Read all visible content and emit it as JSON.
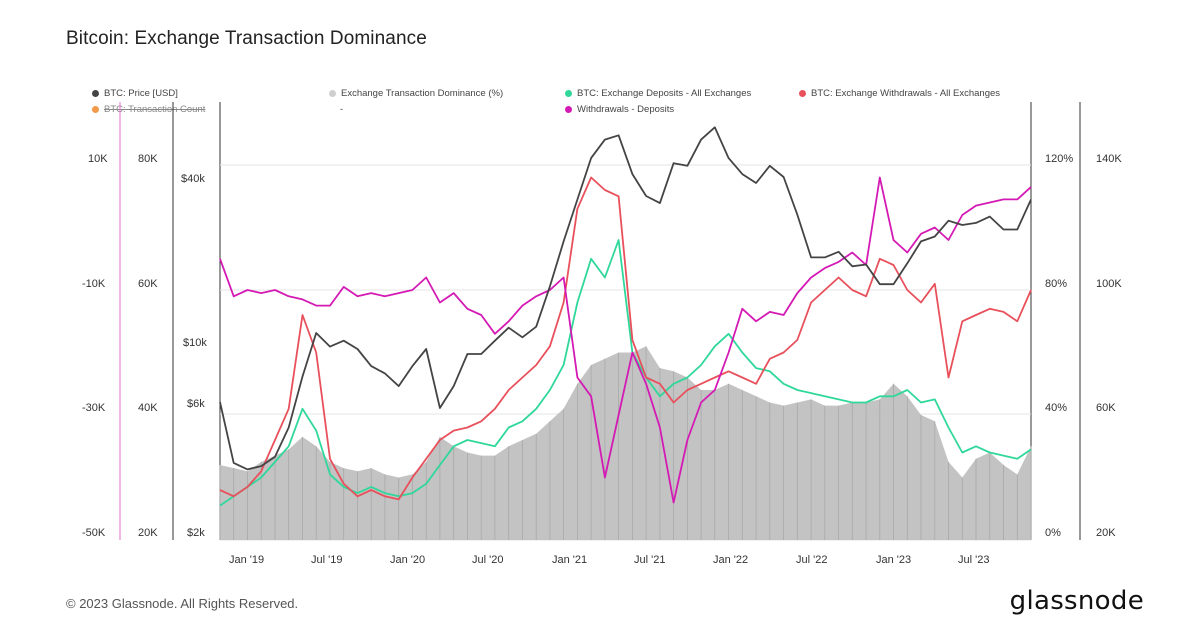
{
  "title": "Bitcoin: Exchange Transaction Dominance",
  "footer": "© 2023 Glassnode. All Rights Reserved.",
  "brand": "glassnode",
  "legend": [
    {
      "label": "BTC: Price [USD]",
      "color": "#444444",
      "struck": false
    },
    {
      "label": "Exchange Transaction Dominance (%)",
      "color": "#cfcfcf",
      "struck": false
    },
    {
      "label": "BTC: Exchange Deposits - All Exchanges",
      "color": "#2fd89a",
      "struck": false
    },
    {
      "label": "BTC: Exchange Withdrawals - All Exchanges",
      "color": "#e8505b",
      "struck": false
    },
    {
      "label": "BTC: Transaction Count",
      "color": "#f29a4a",
      "struck": true
    },
    {
      "label": "-",
      "color": "",
      "struck": false
    },
    {
      "label": "Withdrawals - Deposits",
      "color": "#d41ab4",
      "struck": false
    }
  ],
  "axes": {
    "x_ticks": [
      "Jan '19",
      "Jul '19",
      "Jan '20",
      "Jul '20",
      "Jan '21",
      "Jul '21",
      "Jan '22",
      "Jul '22",
      "Jan '23",
      "Jul '23"
    ],
    "y_net": [
      "10K",
      "-10K",
      "-30K",
      "-50K"
    ],
    "y_count": [
      "80K",
      "60K",
      "40K",
      "20K"
    ],
    "y_price": [
      "$40k",
      "$10k",
      "$6k",
      "$2k"
    ],
    "y_dominance": [
      "120%",
      "80%",
      "40%",
      "0%"
    ],
    "y_flows": [
      "140K",
      "100K",
      "60K",
      "20K"
    ]
  },
  "chart_data": {
    "type": "line",
    "title": "Bitcoin: Exchange Transaction Dominance",
    "x_range": [
      "2018-11",
      "2023-10"
    ],
    "price_scale": "log",
    "grid": true,
    "legend_position": "top",
    "series": [
      {
        "name": "BTC: Price [USD]",
        "axis": "price",
        "color": "#444444",
        "x": [
          "2018-11",
          "2018-12",
          "2019-01",
          "2019-02",
          "2019-03",
          "2019-04",
          "2019-05",
          "2019-06",
          "2019-07",
          "2019-08",
          "2019-09",
          "2019-10",
          "2019-11",
          "2019-12",
          "2020-01",
          "2020-02",
          "2020-03",
          "2020-04",
          "2020-05",
          "2020-06",
          "2020-07",
          "2020-08",
          "2020-09",
          "2020-10",
          "2020-11",
          "2020-12",
          "2021-01",
          "2021-02",
          "2021-03",
          "2021-04",
          "2021-05",
          "2021-06",
          "2021-07",
          "2021-08",
          "2021-09",
          "2021-10",
          "2021-11",
          "2021-12",
          "2022-01",
          "2022-02",
          "2022-03",
          "2022-04",
          "2022-05",
          "2022-06",
          "2022-07",
          "2022-08",
          "2022-09",
          "2022-10",
          "2022-11",
          "2022-12",
          "2023-01",
          "2023-02",
          "2023-03",
          "2023-04",
          "2023-05",
          "2023-06",
          "2023-07",
          "2023-08",
          "2023-09",
          "2023-10"
        ],
        "values": [
          6300,
          3800,
          3600,
          3700,
          4000,
          5100,
          7800,
          11200,
          10000,
          10500,
          9800,
          8500,
          8000,
          7200,
          8500,
          9800,
          6000,
          7200,
          9400,
          9400,
          10500,
          11700,
          10800,
          11800,
          16500,
          24000,
          34000,
          48000,
          56000,
          58000,
          42000,
          35000,
          33000,
          46000,
          45000,
          56000,
          62000,
          48000,
          42000,
          39000,
          45000,
          41000,
          30000,
          21000,
          21000,
          22000,
          19500,
          19800,
          16800,
          16800,
          20000,
          24000,
          25000,
          28500,
          27500,
          28000,
          29500,
          26500,
          26500,
          34000
        ]
      },
      {
        "name": "Exchange Transaction Dominance (%)",
        "axis": "dominance",
        "color": "#c0c0c0",
        "x": [
          "2018-11",
          "2018-12",
          "2019-01",
          "2019-02",
          "2019-03",
          "2019-04",
          "2019-05",
          "2019-06",
          "2019-07",
          "2019-08",
          "2019-09",
          "2019-10",
          "2019-11",
          "2019-12",
          "2020-01",
          "2020-02",
          "2020-03",
          "2020-04",
          "2020-05",
          "2020-06",
          "2020-07",
          "2020-08",
          "2020-09",
          "2020-10",
          "2020-11",
          "2020-12",
          "2021-01",
          "2021-02",
          "2021-03",
          "2021-04",
          "2021-05",
          "2021-06",
          "2021-07",
          "2021-08",
          "2021-09",
          "2021-10",
          "2021-11",
          "2021-12",
          "2022-01",
          "2022-02",
          "2022-03",
          "2022-04",
          "2022-05",
          "2022-06",
          "2022-07",
          "2022-08",
          "2022-09",
          "2022-10",
          "2022-11",
          "2022-12",
          "2023-01",
          "2023-02",
          "2023-03",
          "2023-04",
          "2023-05",
          "2023-06",
          "2023-07",
          "2023-08",
          "2023-09",
          "2023-10"
        ],
        "values": [
          24,
          23,
          22,
          25,
          27,
          29,
          33,
          30,
          25,
          23,
          22,
          23,
          21,
          20,
          21,
          25,
          33,
          30,
          28,
          27,
          27,
          30,
          32,
          34,
          38,
          42,
          50,
          56,
          58,
          60,
          60,
          62,
          55,
          54,
          52,
          48,
          48,
          50,
          48,
          46,
          44,
          43,
          44,
          45,
          43,
          43,
          44,
          44,
          45,
          50,
          46,
          40,
          38,
          25,
          20,
          26,
          28,
          24,
          21,
          30
        ]
      },
      {
        "name": "BTC: Exchange Deposits - All Exchanges",
        "axis": "flows",
        "color": "#2fd89a",
        "x": [
          "2018-11",
          "2018-12",
          "2019-01",
          "2019-02",
          "2019-03",
          "2019-04",
          "2019-05",
          "2019-06",
          "2019-07",
          "2019-08",
          "2019-09",
          "2019-10",
          "2019-11",
          "2019-12",
          "2020-01",
          "2020-02",
          "2020-03",
          "2020-04",
          "2020-05",
          "2020-06",
          "2020-07",
          "2020-08",
          "2020-09",
          "2020-10",
          "2020-11",
          "2020-12",
          "2021-01",
          "2021-02",
          "2021-03",
          "2021-04",
          "2021-05",
          "2021-06",
          "2021-07",
          "2021-08",
          "2021-09",
          "2021-10",
          "2021-11",
          "2021-12",
          "2022-01",
          "2022-02",
          "2022-03",
          "2022-04",
          "2022-05",
          "2022-06",
          "2022-07",
          "2022-08",
          "2022-09",
          "2022-10",
          "2022-11",
          "2022-12",
          "2023-01",
          "2023-02",
          "2023-03",
          "2023-04",
          "2023-05",
          "2023-06",
          "2023-07",
          "2023-08",
          "2023-09",
          "2023-10"
        ],
        "values": [
          31000,
          34000,
          37000,
          40000,
          45000,
          50000,
          62000,
          55000,
          41000,
          37000,
          35000,
          37000,
          35000,
          34000,
          35000,
          38000,
          44000,
          50000,
          52000,
          51000,
          50000,
          56000,
          58000,
          62000,
          68000,
          76000,
          96000,
          110000,
          104000,
          116000,
          80000,
          72000,
          66000,
          70000,
          72000,
          76000,
          82000,
          86000,
          80000,
          75000,
          74000,
          70000,
          68000,
          67000,
          66000,
          65000,
          64000,
          64000,
          66000,
          66000,
          68000,
          64000,
          65000,
          56000,
          48000,
          50000,
          48000,
          47000,
          46000,
          49000
        ]
      },
      {
        "name": "BTC: Exchange Withdrawals - All Exchanges",
        "axis": "flows",
        "color": "#e8505b",
        "x": [
          "2018-11",
          "2018-12",
          "2019-01",
          "2019-02",
          "2019-03",
          "2019-04",
          "2019-05",
          "2019-06",
          "2019-07",
          "2019-08",
          "2019-09",
          "2019-10",
          "2019-11",
          "2019-12",
          "2020-01",
          "2020-02",
          "2020-03",
          "2020-04",
          "2020-05",
          "2020-06",
          "2020-07",
          "2020-08",
          "2020-09",
          "2020-10",
          "2020-11",
          "2020-12",
          "2021-01",
          "2021-02",
          "2021-03",
          "2021-04",
          "2021-05",
          "2021-06",
          "2021-07",
          "2021-08",
          "2021-09",
          "2021-10",
          "2021-11",
          "2021-12",
          "2022-01",
          "2022-02",
          "2022-03",
          "2022-04",
          "2022-05",
          "2022-06",
          "2022-07",
          "2022-08",
          "2022-09",
          "2022-10",
          "2022-11",
          "2022-12",
          "2023-01",
          "2023-02",
          "2023-03",
          "2023-04",
          "2023-05",
          "2023-06",
          "2023-07",
          "2023-08",
          "2023-09",
          "2023-10"
        ],
        "values": [
          36000,
          34000,
          37000,
          42000,
          52000,
          62000,
          92000,
          80000,
          46000,
          38000,
          34000,
          36000,
          34000,
          33000,
          40000,
          46000,
          52000,
          55000,
          56000,
          58000,
          62000,
          68000,
          72000,
          76000,
          82000,
          96000,
          126000,
          136000,
          132000,
          130000,
          84000,
          72000,
          70000,
          64000,
          68000,
          70000,
          72000,
          74000,
          72000,
          70000,
          78000,
          80000,
          84000,
          96000,
          100000,
          104000,
          100000,
          98000,
          110000,
          108000,
          100000,
          96000,
          102000,
          72000,
          90000,
          92000,
          94000,
          93000,
          90000,
          100000
        ]
      },
      {
        "name": "Withdrawals - Deposits",
        "axis": "net",
        "color": "#d41ab4",
        "x": [
          "2018-11",
          "2018-12",
          "2019-01",
          "2019-02",
          "2019-03",
          "2019-04",
          "2019-05",
          "2019-06",
          "2019-07",
          "2019-08",
          "2019-09",
          "2019-10",
          "2019-11",
          "2019-12",
          "2020-01",
          "2020-02",
          "2020-03",
          "2020-04",
          "2020-05",
          "2020-06",
          "2020-07",
          "2020-08",
          "2020-09",
          "2020-10",
          "2020-11",
          "2020-12",
          "2021-01",
          "2021-02",
          "2021-03",
          "2021-04",
          "2021-05",
          "2021-06",
          "2021-07",
          "2021-08",
          "2021-09",
          "2021-10",
          "2021-11",
          "2021-12",
          "2022-01",
          "2022-02",
          "2022-03",
          "2022-04",
          "2022-05",
          "2022-06",
          "2022-07",
          "2022-08",
          "2022-09",
          "2022-10",
          "2022-11",
          "2022-12",
          "2023-01",
          "2023-02",
          "2023-03",
          "2023-04",
          "2023-05",
          "2023-06",
          "2023-07",
          "2023-08",
          "2023-09",
          "2023-10"
        ],
        "values": [
          -5000,
          -11000,
          -10000,
          -10500,
          -10000,
          -11000,
          -11500,
          -12500,
          -12500,
          -9500,
          -11000,
          -10500,
          -11000,
          -10500,
          -10000,
          -8000,
          -12000,
          -10500,
          -13000,
          -14000,
          -17000,
          -15000,
          -12500,
          -11000,
          -10000,
          -8000,
          -24000,
          -27000,
          -40000,
          -30000,
          -20000,
          -25000,
          -32000,
          -44000,
          -34000,
          -28000,
          -26000,
          -20000,
          -13000,
          -15000,
          -13500,
          -14000,
          -10500,
          -8000,
          -6500,
          -5500,
          -4000,
          -6000,
          8000,
          -2000,
          -4000,
          -1000,
          0,
          -2000,
          2000,
          3500,
          4000,
          4500,
          4500,
          6500
        ]
      }
    ]
  }
}
